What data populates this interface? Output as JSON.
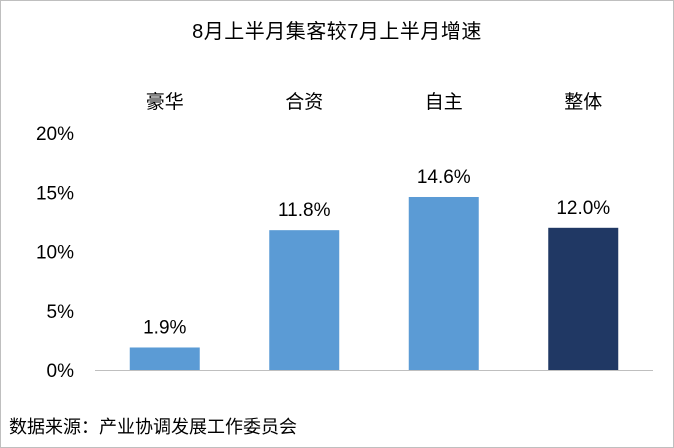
{
  "chart_data": {
    "type": "bar",
    "title": "8月上半月集客较7月上半月增速",
    "categories": [
      "豪华",
      "合资",
      "自主",
      "整体"
    ],
    "values": [
      1.9,
      11.8,
      14.6,
      12.0
    ],
    "value_labels": [
      "1.9%",
      "11.8%",
      "14.6%",
      "12.0%"
    ],
    "bar_colors": [
      "#5b9bd5",
      "#5b9bd5",
      "#5b9bd5",
      "#203864"
    ],
    "ylim": [
      0,
      20
    ],
    "yticks": [
      0,
      5,
      10,
      15,
      20
    ],
    "ytick_labels": [
      "0%",
      "5%",
      "10%",
      "15%",
      "20%"
    ],
    "category_label_position": "top",
    "grid": false,
    "legend": "none",
    "xlabel": "",
    "ylabel": ""
  },
  "source": "数据来源：产业协调发展工作委员会"
}
